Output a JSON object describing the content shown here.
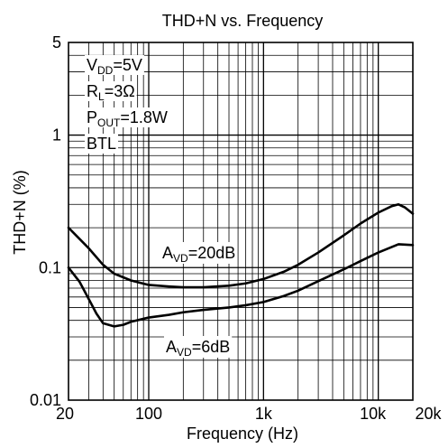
{
  "chart_data": {
    "type": "line",
    "title": "THD+N vs. Frequency",
    "xlabel": "Frequency (Hz)",
    "ylabel": "THD+N (%)",
    "x_scale": "log",
    "y_scale": "log",
    "xlim": [
      20,
      20000
    ],
    "ylim": [
      0.01,
      5
    ],
    "grid": true,
    "x_ticks": [
      {
        "value": 20,
        "label": "20"
      },
      {
        "value": 100,
        "label": "100"
      },
      {
        "value": 1000,
        "label": "1k"
      },
      {
        "value": 10000,
        "label": "10k"
      },
      {
        "value": 20000,
        "label": "20k"
      }
    ],
    "y_ticks": [
      {
        "value": 0.01,
        "label": "0.01"
      },
      {
        "value": 0.1,
        "label": "0.1"
      },
      {
        "value": 1,
        "label": "1"
      },
      {
        "value": 5,
        "label": "5"
      }
    ],
    "conditions": [
      {
        "main": "V",
        "sub": "DD",
        "rest": "=5V"
      },
      {
        "main": "R",
        "sub": "L",
        "rest": "=3Ω"
      },
      {
        "main": "P",
        "sub": "OUT",
        "rest": "=1.8W"
      },
      {
        "main": "BTL",
        "sub": "",
        "rest": ""
      }
    ],
    "series": [
      {
        "label_main": "A",
        "label_sub": "VD",
        "label_rest": "=20dB",
        "x": [
          20,
          30,
          40,
          50,
          70,
          100,
          150,
          200,
          300,
          500,
          700,
          1000,
          1500,
          2000,
          3000,
          5000,
          7000,
          10000,
          13000,
          15000,
          17000,
          20000
        ],
        "y": [
          0.2,
          0.14,
          0.105,
          0.09,
          0.08,
          0.074,
          0.072,
          0.071,
          0.071,
          0.073,
          0.076,
          0.082,
          0.093,
          0.105,
          0.13,
          0.175,
          0.215,
          0.26,
          0.29,
          0.3,
          0.285,
          0.255
        ]
      },
      {
        "label_main": "A",
        "label_sub": "VD",
        "label_rest": "=6dB",
        "x": [
          20,
          25,
          30,
          35,
          40,
          50,
          60,
          70,
          100,
          150,
          200,
          300,
          500,
          700,
          1000,
          1500,
          2000,
          3000,
          5000,
          7000,
          10000,
          15000,
          20000
        ],
        "y": [
          0.1,
          0.078,
          0.058,
          0.045,
          0.038,
          0.036,
          0.037,
          0.039,
          0.042,
          0.044,
          0.046,
          0.048,
          0.05,
          0.052,
          0.055,
          0.061,
          0.067,
          0.079,
          0.097,
          0.112,
          0.13,
          0.15,
          0.148
        ]
      }
    ]
  }
}
